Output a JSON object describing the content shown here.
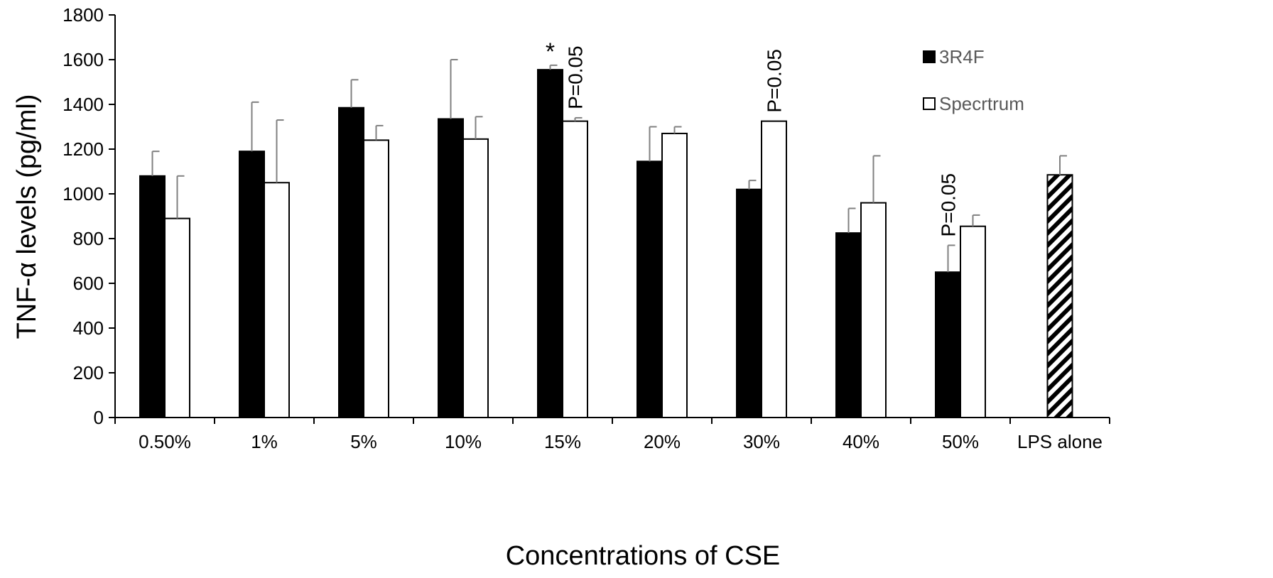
{
  "chart_data": {
    "type": "bar",
    "xlabel": "Concentrations of CSE",
    "ylabel": "TNF-α levels (pg/ml)",
    "ylim": [
      0,
      1800
    ],
    "yticks": [
      0,
      200,
      400,
      600,
      800,
      1000,
      1200,
      1400,
      1600,
      1800
    ],
    "categories": [
      "0.50%",
      "1%",
      "5%",
      "10%",
      "15%",
      "20%",
      "30%",
      "40%",
      "50%",
      "LPS alone"
    ],
    "series": [
      {
        "name": "3R4F",
        "fill": "#000000",
        "values": [
          1080,
          1190,
          1385,
          1335,
          1555,
          1145,
          1020,
          825,
          650,
          null
        ],
        "errors": [
          110,
          220,
          125,
          265,
          20,
          155,
          40,
          110,
          120,
          null
        ]
      },
      {
        "name": "Specrtrum",
        "fill": "#ffffff",
        "values": [
          890,
          1050,
          1240,
          1245,
          1325,
          1270,
          1325,
          960,
          855,
          null
        ],
        "errors": [
          190,
          280,
          65,
          100,
          15,
          30,
          0,
          210,
          50,
          null
        ]
      }
    ],
    "lps_alone": {
      "value": 1085,
      "error": 85,
      "pattern": "diagonal-hatch"
    },
    "annotations": [
      {
        "category": "15%",
        "series": "3R4F",
        "text": "*"
      },
      {
        "category": "15%",
        "series": "Specrtrum",
        "text": "P=0.05"
      },
      {
        "category": "30%",
        "series": "Specrtrum",
        "text": "P=0.05"
      },
      {
        "category": "50%",
        "series": "3R4F",
        "text": "P=0.05"
      }
    ],
    "legend_position": "top-right",
    "grid": false,
    "error_bar_color": "#808080"
  }
}
